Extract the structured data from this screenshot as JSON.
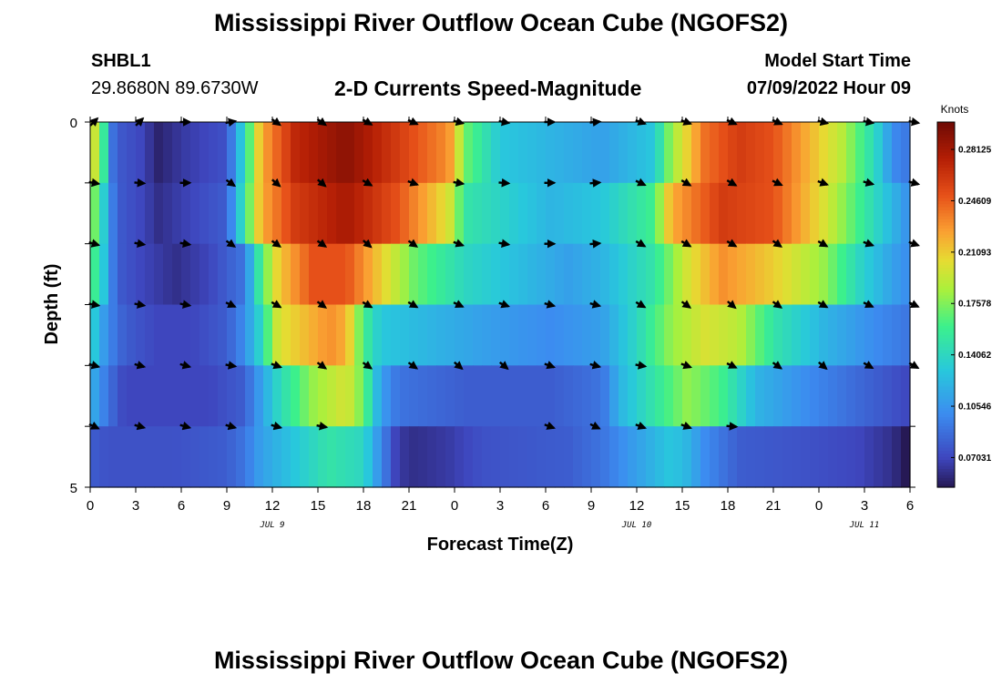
{
  "header": {
    "title": "Mississippi River Outflow Ocean Cube (NGOFS2)",
    "title_bottom": "Mississippi River Outflow Ocean Cube (NGOFS2)",
    "station_id": "SHBL1",
    "coordinates": "29.8680N  89.6730W",
    "subtitle": "2-D Currents Speed-Magnitude",
    "model_start_label": "Model Start Time",
    "model_start_value": "07/09/2022 Hour 09"
  },
  "chart_data": {
    "type": "heatmap",
    "title": "2-D Currents Speed-Magnitude",
    "xlabel": "Forecast Time(Z)",
    "ylabel": "Depth (ft)",
    "x_ticks": [
      "0",
      "3",
      "6",
      "9",
      "12",
      "15",
      "18",
      "21",
      "0",
      "3",
      "6",
      "9",
      "12",
      "15",
      "18",
      "21",
      "0",
      "3",
      "6"
    ],
    "date_labels": [
      {
        "label": "JUL 9",
        "at_tick": 4
      },
      {
        "label": "JUL 10",
        "at_tick": 12
      },
      {
        "label": "JUL 11",
        "at_tick": 17
      }
    ],
    "y_ticks": [
      "0",
      "5"
    ],
    "ylim": [
      0,
      5
    ],
    "colorbar": {
      "title": "Knots",
      "ticks": [
        "0.28125",
        "0.24609",
        "0.21093",
        "0.17578",
        "0.14062",
        "0.10546",
        "0.07031"
      ],
      "range": [
        0.05,
        0.3
      ]
    },
    "rows": [
      {
        "depth": 0,
        "key": [
          [
            0,
            0.2
          ],
          [
            0.5,
            0.19
          ],
          [
            1,
            0.13
          ],
          [
            1.4,
            0.08
          ],
          [
            3,
            0.07
          ],
          [
            4,
            0.055
          ],
          [
            5.5,
            0.065
          ],
          [
            8,
            0.075
          ],
          [
            9,
            0.14
          ],
          [
            10,
            0.22
          ],
          [
            12,
            0.27
          ],
          [
            15,
            0.29
          ],
          [
            17,
            0.27
          ],
          [
            21,
            0.23
          ],
          [
            22,
            0.17
          ],
          [
            24,
            0.13
          ],
          [
            30,
            0.11
          ],
          [
            33,
            0.13
          ],
          [
            34,
            0.18
          ],
          [
            36,
            0.24
          ],
          [
            38,
            0.26
          ],
          [
            40,
            0.25
          ],
          [
            42,
            0.22
          ],
          [
            44,
            0.19
          ],
          [
            46,
            0.14
          ],
          [
            47,
            0.1
          ],
          [
            48,
            0.09
          ]
        ],
        "arrows": [
          45,
          45,
          0,
          10,
          -35,
          -35,
          -30,
          -25,
          -15,
          -10,
          0,
          5,
          -20,
          -20,
          -25,
          -25,
          -15,
          -10,
          -10
        ]
      },
      {
        "depth": 1,
        "key": [
          [
            0,
            0.19
          ],
          [
            1,
            0.12
          ],
          [
            1.5,
            0.08
          ],
          [
            3,
            0.07
          ],
          [
            4,
            0.06
          ],
          [
            6,
            0.07
          ],
          [
            8,
            0.08
          ],
          [
            9,
            0.15
          ],
          [
            10,
            0.22
          ],
          [
            12,
            0.26
          ],
          [
            15,
            0.28
          ],
          [
            18,
            0.25
          ],
          [
            21,
            0.2
          ],
          [
            22,
            0.15
          ],
          [
            27,
            0.12
          ],
          [
            30,
            0.13
          ],
          [
            33,
            0.16
          ],
          [
            34,
            0.22
          ],
          [
            37,
            0.26
          ],
          [
            40,
            0.25
          ],
          [
            43,
            0.2
          ],
          [
            45,
            0.16
          ],
          [
            47,
            0.12
          ],
          [
            48,
            0.1
          ]
        ],
        "arrows": [
          -10,
          -5,
          0,
          -35,
          -40,
          -40,
          -30,
          -20,
          -10,
          -5,
          0,
          5,
          -25,
          -30,
          -30,
          -25,
          -20,
          -15,
          -15
        ]
      },
      {
        "depth": 2,
        "key": [
          [
            0,
            0.17
          ],
          [
            1,
            0.12
          ],
          [
            1.5,
            0.08
          ],
          [
            3,
            0.07
          ],
          [
            5,
            0.06
          ],
          [
            7,
            0.07
          ],
          [
            9,
            0.09
          ],
          [
            10,
            0.16
          ],
          [
            11,
            0.21
          ],
          [
            13,
            0.25
          ],
          [
            15,
            0.25
          ],
          [
            17,
            0.21
          ],
          [
            19,
            0.17
          ],
          [
            22,
            0.14
          ],
          [
            24,
            0.13
          ],
          [
            28,
            0.11
          ],
          [
            30,
            0.12
          ],
          [
            33,
            0.15
          ],
          [
            35,
            0.2
          ],
          [
            37,
            0.23
          ],
          [
            40,
            0.21
          ],
          [
            43,
            0.18
          ],
          [
            45,
            0.14
          ],
          [
            47,
            0.11
          ],
          [
            48,
            0.1
          ]
        ],
        "arrows": [
          -15,
          -10,
          -10,
          -35,
          -35,
          -35,
          -40,
          -35,
          -20,
          -10,
          0,
          5,
          -30,
          -30,
          -30,
          -35,
          -30,
          -20,
          -20
        ]
      },
      {
        "depth": 3,
        "key": [
          [
            0,
            0.14
          ],
          [
            1,
            0.1
          ],
          [
            2,
            0.08
          ],
          [
            4,
            0.07
          ],
          [
            6,
            0.07
          ],
          [
            8,
            0.08
          ],
          [
            9,
            0.1
          ],
          [
            10,
            0.14
          ],
          [
            11,
            0.2
          ],
          [
            13,
            0.22
          ],
          [
            14,
            0.23
          ],
          [
            15,
            0.22
          ],
          [
            16,
            0.16
          ],
          [
            17,
            0.13
          ],
          [
            20,
            0.12
          ],
          [
            23,
            0.11
          ],
          [
            27,
            0.1
          ],
          [
            30,
            0.11
          ],
          [
            32,
            0.14
          ],
          [
            34,
            0.18
          ],
          [
            36,
            0.2
          ],
          [
            38,
            0.19
          ],
          [
            40,
            0.15
          ],
          [
            43,
            0.12
          ],
          [
            46,
            0.1
          ],
          [
            48,
            0.09
          ]
        ],
        "arrows": [
          -10,
          -10,
          -10,
          -25,
          -30,
          -35,
          -30,
          -30,
          -25,
          -20,
          -15,
          -15,
          -30,
          -35,
          -40,
          -35,
          -30,
          -25,
          -25
        ]
      },
      {
        "depth": 4,
        "key": [
          [
            0,
            0.12
          ],
          [
            1,
            0.09
          ],
          [
            2,
            0.07
          ],
          [
            5,
            0.07
          ],
          [
            7,
            0.07
          ],
          [
            9,
            0.08
          ],
          [
            10,
            0.11
          ],
          [
            11,
            0.14
          ],
          [
            13,
            0.18
          ],
          [
            15,
            0.2
          ],
          [
            16,
            0.17
          ],
          [
            17,
            0.11
          ],
          [
            18,
            0.09
          ],
          [
            22,
            0.08
          ],
          [
            27,
            0.08
          ],
          [
            30,
            0.09
          ],
          [
            31,
            0.12
          ],
          [
            33,
            0.15
          ],
          [
            35,
            0.18
          ],
          [
            37,
            0.16
          ],
          [
            39,
            0.12
          ],
          [
            42,
            0.1
          ],
          [
            46,
            0.08
          ],
          [
            48,
            0.07
          ]
        ],
        "arrows": [
          -15,
          -15,
          -15,
          -10,
          -20,
          -35,
          -35,
          -35,
          -40,
          -40,
          -20,
          -15,
          -10,
          -20,
          -25,
          -35,
          -40,
          -30,
          -30
        ]
      },
      {
        "depth": 5,
        "key": [
          [
            0,
            0.08
          ],
          [
            1,
            0.075
          ],
          [
            5,
            0.075
          ],
          [
            8,
            0.08
          ],
          [
            9,
            0.09
          ],
          [
            10,
            0.11
          ],
          [
            12,
            0.13
          ],
          [
            14,
            0.15
          ],
          [
            16,
            0.14
          ],
          [
            17,
            0.1
          ],
          [
            18,
            0.065
          ],
          [
            19,
            0.06
          ],
          [
            21,
            0.065
          ],
          [
            23,
            0.075
          ],
          [
            28,
            0.08
          ],
          [
            30,
            0.09
          ],
          [
            32,
            0.11
          ],
          [
            34,
            0.13
          ],
          [
            35,
            0.12
          ],
          [
            36,
            0.1
          ],
          [
            38,
            0.08
          ],
          [
            42,
            0.075
          ],
          [
            45,
            0.07
          ],
          [
            47,
            0.06
          ],
          [
            48,
            0.045
          ]
        ],
        "arrows": [
          -25,
          -15,
          -15,
          -15,
          -15,
          -10,
          null,
          null,
          null,
          null,
          -20,
          -25,
          -20,
          -20,
          -5,
          null,
          null,
          null,
          null
        ]
      }
    ]
  }
}
